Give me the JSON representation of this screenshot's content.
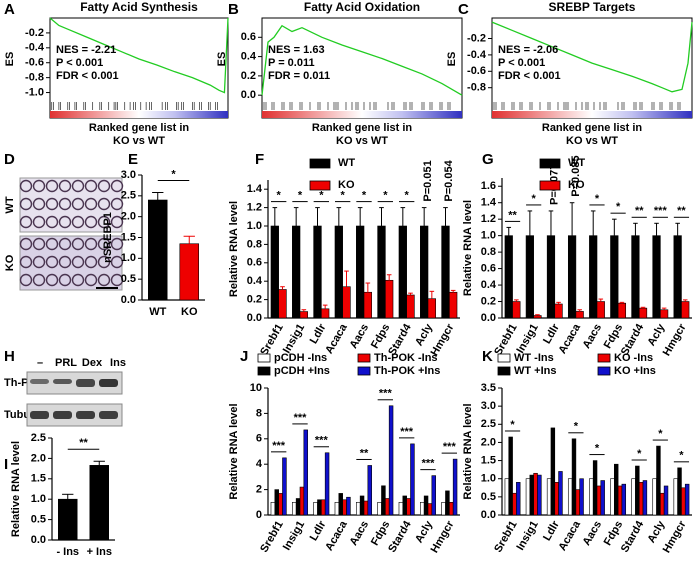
{
  "chart_data": [
    {
      "type": "line",
      "panel": "A",
      "title": "Fatty Acid Synthesis",
      "ylabel": "ES",
      "xlabel": [
        "Ranked gene list in",
        "KO vs WT"
      ],
      "color": "#22cc22",
      "x": [
        0,
        5,
        10,
        20,
        30,
        40,
        50,
        60,
        70,
        80,
        90,
        95,
        98,
        100
      ],
      "values": [
        0,
        -0.1,
        -0.15,
        -0.25,
        -0.35,
        -0.45,
        -0.55,
        -0.63,
        -0.72,
        -0.8,
        -0.9,
        -0.97,
        -1.0,
        0
      ],
      "xlim": [
        0,
        100
      ],
      "ylim": [
        -1.1,
        0
      ],
      "yticks": [
        -0.2,
        -0.4,
        -0.6,
        -0.8,
        {
          "value": -1,
          "label": "-1.0"
        }
      ],
      "annotations": [
        "NES = -2.21",
        "P < 0.001",
        "FDR < 0.001"
      ]
    },
    {
      "type": "line",
      "panel": "B",
      "title": "Fatty Acid Oxidation",
      "ylabel": "ES",
      "xlabel": [
        "Ranked gene list in",
        "KO vs WT"
      ],
      "color": "#22cc22",
      "x": [
        0,
        3,
        6,
        10,
        15,
        20,
        30,
        40,
        50,
        60,
        70,
        80,
        90,
        100
      ],
      "values": [
        0,
        0.55,
        0.6,
        0.72,
        0.66,
        0.7,
        0.6,
        0.52,
        0.45,
        0.38,
        0.3,
        0.22,
        0.12,
        0
      ],
      "xlim": [
        0,
        100
      ],
      "ylim": [
        -0.05,
        0.8
      ],
      "yticks": [
        0.6,
        0.4,
        0.2,
        {
          "value": 0,
          "label": "0.0"
        }
      ],
      "annotations": [
        "NES = 1.63",
        "P = 0.011",
        "FDR = 0.011"
      ]
    },
    {
      "type": "line",
      "panel": "C",
      "title": "SREBP Targets",
      "ylabel": "ES",
      "xlabel": [
        "Ranked gene list in",
        "KO vs WT"
      ],
      "color": "#22cc22",
      "x": [
        0,
        10,
        20,
        30,
        40,
        50,
        60,
        70,
        80,
        85,
        90,
        95,
        98,
        100
      ],
      "values": [
        0,
        -0.1,
        -0.2,
        -0.3,
        -0.4,
        -0.5,
        -0.58,
        -0.66,
        -0.75,
        -0.8,
        -0.85,
        -0.82,
        -0.5,
        0
      ],
      "xlim": [
        0,
        100
      ],
      "ylim": [
        -0.95,
        0.05
      ],
      "yticks": [
        -0.2,
        -0.4,
        -0.6,
        -0.8
      ],
      "annotations": [
        "NES = -2.06",
        "P < 0.001",
        "FDR < 0.001"
      ]
    },
    {
      "type": "image",
      "panel": "D",
      "labels": [
        "WT",
        "KO"
      ]
    },
    {
      "type": "bar",
      "panel": "E",
      "ylabel": "nSREBP1",
      "categories": [
        "WT",
        "KO"
      ],
      "values": [
        2.4,
        1.35
      ],
      "errors": [
        0.18,
        0.18
      ],
      "colors": [
        "#000000",
        "#ee0000"
      ],
      "ylim": [
        0,
        3
      ],
      "yticks": [
        {
          "value": 0,
          "label": "0.0"
        },
        0.5,
        {
          "value": 1,
          "label": "1.0"
        },
        1.5,
        {
          "value": 2,
          "label": "2.0"
        },
        2.5,
        {
          "value": 3,
          "label": "3.0"
        }
      ],
      "annotations": [
        "*"
      ]
    },
    {
      "type": "bar",
      "panel": "F",
      "ylabel": "Relative RNA level",
      "categories": [
        "Srebf1",
        "Insig1",
        "Ldlr",
        "Acaca",
        "Aacs",
        "Fdps",
        "Stard4",
        "Acly",
        "Hmgcr"
      ],
      "series": [
        {
          "name": "WT",
          "color": "#000000",
          "values": [
            1,
            1,
            1,
            1,
            1,
            1,
            1,
            1,
            1
          ],
          "errors": [
            0.2,
            0.2,
            0.2,
            0.2,
            0.2,
            0.2,
            0.2,
            0.2,
            0.2
          ]
        },
        {
          "name": "KO",
          "color": "#ee0000",
          "values": [
            0.31,
            0.07,
            0.1,
            0.34,
            0.28,
            0.41,
            0.25,
            0.21,
            0.28
          ],
          "errors": [
            0.03,
            0.02,
            0.04,
            0.17,
            0.1,
            0.06,
            0.02,
            0.08,
            0.02
          ]
        }
      ],
      "ylim": [
        0,
        1.5
      ],
      "yticks": [
        {
          "value": 0,
          "label": "0.0"
        },
        0.2,
        0.4,
        0.6,
        0.8,
        {
          "value": 1,
          "label": "1.0"
        },
        1.2,
        1.4
      ],
      "annotations": [
        "*",
        "*",
        "*",
        "*",
        "*",
        "*",
        "*",
        "P=0.051",
        "P=0.054"
      ]
    },
    {
      "type": "bar",
      "panel": "G",
      "ylabel": "Relative RNA level",
      "categories": [
        "Srebf1",
        "Insig1",
        "Ldlr",
        "Acaca",
        "Aacs",
        "Fdps",
        "Stard4",
        "Acly",
        "Hmgcr"
      ],
      "series": [
        {
          "name": "WT",
          "color": "#000000",
          "values": [
            1,
            1,
            1,
            1,
            1,
            1,
            1,
            1,
            1
          ],
          "errors": [
            0.1,
            0.3,
            0.3,
            0.4,
            0.3,
            0.2,
            0.15,
            0.15,
            0.15
          ]
        },
        {
          "name": "KO",
          "color": "#ee0000",
          "values": [
            0.2,
            0.03,
            0.17,
            0.08,
            0.2,
            0.18,
            0.12,
            0.1,
            0.2
          ],
          "errors": [
            0.02,
            0.01,
            0.02,
            0.02,
            0.03,
            0.01,
            0.01,
            0.02,
            0.02
          ]
        }
      ],
      "ylim": [
        0,
        1.7
      ],
      "yticks": [
        {
          "value": 0,
          "label": "0.0"
        },
        0.2,
        0.4,
        0.6,
        0.8,
        {
          "value": 1,
          "label": "1.0"
        },
        1.2,
        1.4,
        1.6
      ],
      "annotations": [
        "**",
        "*",
        "P=0.077",
        "P=0.085",
        "*",
        "*",
        "**",
        "***",
        "**"
      ]
    },
    {
      "type": "image",
      "panel": "H",
      "labels": [
        "–",
        "PRL",
        "Dex",
        "Ins"
      ],
      "rows": [
        "Th-POK",
        "Tubulin"
      ]
    },
    {
      "type": "bar",
      "panel": "I",
      "ylabel": "Relative RNA level",
      "categories": [
        "- Ins",
        "+ Ins"
      ],
      "values": [
        1.0,
        1.83
      ],
      "errors": [
        0.12,
        0.1
      ],
      "colors": [
        "#000000",
        "#000000"
      ],
      "ylim": [
        0,
        2.5
      ],
      "yticks": [
        {
          "value": 0,
          "label": "0.0"
        },
        0.5,
        {
          "value": 1,
          "label": "1.0"
        },
        1.5,
        {
          "value": 2,
          "label": "2.0"
        },
        2.5
      ],
      "annotations": [
        "**"
      ]
    },
    {
      "type": "bar",
      "panel": "J",
      "ylabel": "Relative RNA level",
      "categories": [
        "Srebf1",
        "Insig1",
        "Ldlr",
        "Acaca",
        "Aacs",
        "Fdps",
        "Stard4",
        "Acly",
        "Hmgcr"
      ],
      "series": [
        {
          "name": "pCDH -Ins",
          "color": "#ffffff",
          "values": [
            1,
            1,
            1,
            1,
            1,
            1,
            1,
            1,
            1
          ]
        },
        {
          "name": "pCDH +Ins",
          "color": "#000000",
          "values": [
            2.0,
            1.3,
            1.2,
            1.7,
            1.5,
            2.3,
            1.5,
            1.5,
            1.9
          ]
        },
        {
          "name": "Th-POK -Ins",
          "color": "#ee0000",
          "values": [
            1.7,
            2.2,
            1.2,
            1.2,
            1.1,
            1.3,
            1.3,
            0.9,
            1.0
          ]
        },
        {
          "name": "Th-POK +Ins",
          "color": "#1010cc",
          "values": [
            4.5,
            6.7,
            4.9,
            1.4,
            3.9,
            8.6,
            5.6,
            3.1,
            4.4
          ]
        }
      ],
      "ylim": [
        0,
        10
      ],
      "yticks": [
        0,
        2,
        4,
        6,
        8,
        10
      ],
      "annotations": [
        "***",
        "***",
        "***",
        null,
        "**",
        "***",
        "***",
        "***",
        "***"
      ]
    },
    {
      "type": "bar",
      "panel": "K",
      "ylabel": "Relative RNA level",
      "categories": [
        "Srebf1",
        "Insig1",
        "Ldlr",
        "Acaca",
        "Aacs",
        "Fdps",
        "Stard4",
        "Acly",
        "Hmgcr"
      ],
      "series": [
        {
          "name": "WT -Ins",
          "color": "#ffffff",
          "values": [
            1,
            1,
            1,
            1,
            1,
            1,
            1,
            1,
            1
          ]
        },
        {
          "name": "WT +Ins",
          "color": "#000000",
          "values": [
            2.15,
            1.1,
            2.4,
            2.1,
            1.5,
            1.4,
            1.35,
            1.9,
            1.3
          ]
        },
        {
          "name": "KO -Ins",
          "color": "#ee0000",
          "values": [
            0.6,
            1.15,
            0.9,
            0.7,
            0.8,
            0.8,
            0.9,
            0.6,
            0.75
          ]
        },
        {
          "name": "KO +Ins",
          "color": "#1010cc",
          "values": [
            0.9,
            1.1,
            1.2,
            1.0,
            0.95,
            0.85,
            0.95,
            0.8,
            0.85
          ]
        }
      ],
      "ylim": [
        0,
        3.5
      ],
      "yticks": [
        {
          "value": 0,
          "label": "0.0"
        },
        0.5,
        {
          "value": 1,
          "label": "1.0"
        },
        1.5,
        {
          "value": 2,
          "label": "2.0"
        },
        2.5,
        {
          "value": 3,
          "label": "3.0"
        },
        3.5
      ],
      "annotations": [
        "*",
        null,
        null,
        "*",
        "*",
        null,
        "*",
        "*",
        "*"
      ]
    }
  ]
}
